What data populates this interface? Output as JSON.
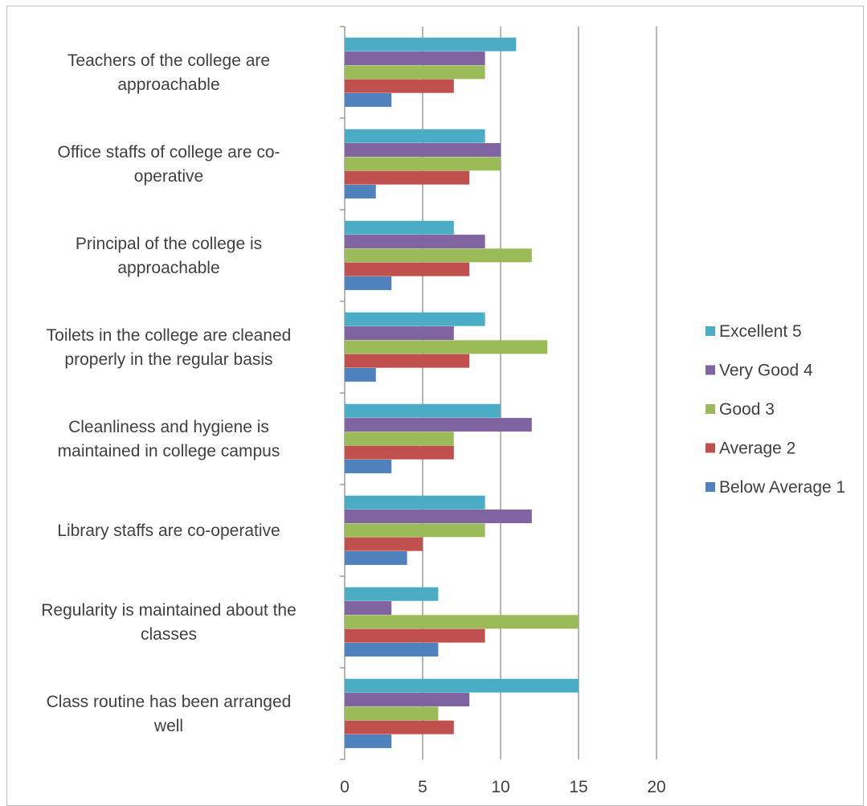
{
  "chart_data": {
    "type": "bar",
    "orientation": "horizontal",
    "title": "",
    "xlabel": "",
    "ylabel": "",
    "xlim": [
      0,
      20
    ],
    "x_ticks": [
      "0",
      "5",
      "10",
      "15",
      "20"
    ],
    "grid": "vertical major gridlines",
    "legend_position": "right",
    "categories": [
      "Class routine has been arranged well",
      "Regularity is maintained about the classes",
      "Library staffs are co-operative",
      "Cleanliness and hygiene is maintained in college campus",
      "Toilets in the college are cleaned properly in the regular basis",
      "Principal of the college is approachable",
      "Office staffs of college are co-operative",
      "Teachers of the college are approachable"
    ],
    "category_label_lines": [
      [
        "Class routine has been arranged",
        "well"
      ],
      [
        "Regularity is maintained about the",
        "classes"
      ],
      [
        "Library staffs are co-operative"
      ],
      [
        "Cleanliness and hygiene is",
        "maintained in college campus"
      ],
      [
        "Toilets in the college are cleaned",
        "properly in the regular basis"
      ],
      [
        "Principal of the college is",
        "approachable"
      ],
      [
        "Office staffs of college are co-",
        "operative"
      ],
      [
        "Teachers of the college are",
        "approachable"
      ]
    ],
    "series": [
      {
        "name": "Below Average 1",
        "color": "#4f81bd",
        "values": [
          3,
          6,
          4,
          3,
          2,
          3,
          2,
          3
        ]
      },
      {
        "name": "Average 2",
        "color": "#c0504d",
        "values": [
          7,
          9,
          5,
          7,
          8,
          8,
          8,
          7
        ]
      },
      {
        "name": "Good 3",
        "color": "#9bbb59",
        "values": [
          6,
          15,
          9,
          7,
          13,
          12,
          10,
          9
        ]
      },
      {
        "name": "Very Good 4",
        "color": "#8064a2",
        "values": [
          8,
          3,
          12,
          12,
          7,
          9,
          10,
          9
        ]
      },
      {
        "name": "Excellent 5",
        "color": "#4bacc6",
        "values": [
          15,
          6,
          9,
          10,
          9,
          7,
          9,
          11
        ]
      }
    ],
    "legend_order": [
      "Excellent 5",
      "Very Good 4",
      "Good 3",
      "Average 2",
      "Below Average 1"
    ]
  }
}
